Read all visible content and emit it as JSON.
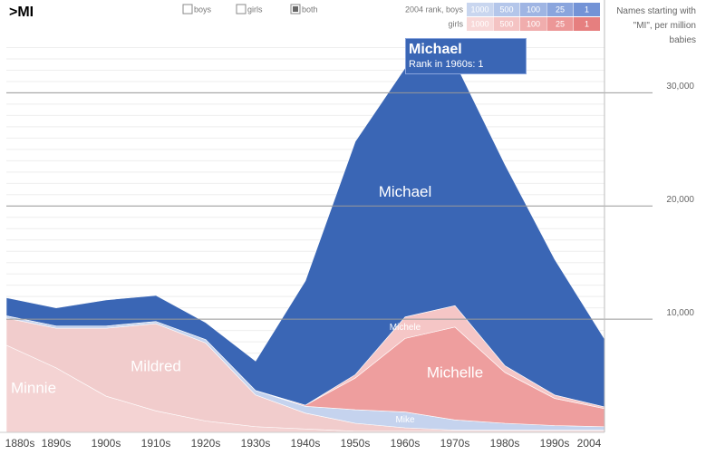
{
  "search": ">MI",
  "filters": [
    {
      "label": "boys",
      "checked": false
    },
    {
      "label": "girls",
      "checked": false
    },
    {
      "label": "both",
      "checked": true
    }
  ],
  "rank_legend": {
    "boys_label": "2004 rank, boys",
    "girls_label": "girls",
    "ranks": [
      1000,
      500,
      100,
      25,
      1
    ],
    "boys_colors": [
      "#c9d6ef",
      "#b4c6ea",
      "#9fb5e3",
      "#8aa5dd",
      "#7393d6"
    ],
    "girls_colors": [
      "#f8d8d8",
      "#f4c3c3",
      "#f0adad",
      "#ec9797",
      "#e67f7f"
    ]
  },
  "axis_note": "Names starting with \"MI\", per million babies",
  "tooltip": {
    "title": "Michael",
    "text": "Rank in 1960s: 1"
  },
  "chart_data": {
    "type": "stacked_area",
    "categories": [
      "1880s",
      "1890s",
      "1900s",
      "1910s",
      "1920s",
      "1930s",
      "1940s",
      "1950s",
      "1960s",
      "1970s",
      "1980s",
      "1990s",
      "2004"
    ],
    "series": [
      {
        "name": "Minnie",
        "color": "#f4d3d3",
        "values": [
          7700,
          5700,
          3200,
          1900,
          1000,
          500,
          300,
          100,
          100,
          100,
          100,
          100,
          100
        ]
      },
      {
        "name": "Mildred",
        "color": "#f1cccc",
        "values": [
          2400,
          3500,
          6000,
          7700,
          6900,
          2800,
          1400,
          700,
          300,
          100,
          100,
          100,
          100
        ]
      },
      {
        "name": "Mike",
        "color": "#c5d3ee",
        "values": [
          200,
          200,
          200,
          200,
          300,
          400,
          600,
          1200,
          1400,
          900,
          600,
          400,
          300
        ]
      },
      {
        "name": "Michelle",
        "color": "#ee9e9e",
        "values": [
          0,
          0,
          0,
          0,
          0,
          0,
          100,
          2800,
          6500,
          8200,
          4500,
          2400,
          1600
        ]
      },
      {
        "name": "Michele",
        "color": "#f5c6c6",
        "values": [
          0,
          0,
          0,
          0,
          0,
          0,
          0,
          300,
          1900,
          1900,
          600,
          300,
          150
        ]
      },
      {
        "name": "Michael",
        "color": "#3a66b5",
        "values": [
          1600,
          1600,
          2300,
          2300,
          1500,
          2600,
          11000,
          20600,
          22000,
          21500,
          17800,
          12000,
          6000
        ]
      }
    ],
    "ylim": [
      0,
      35000
    ],
    "yticks": [
      {
        "value": 10000,
        "label": "10,000"
      },
      {
        "value": 20000,
        "label": "20,000"
      },
      {
        "value": 30000,
        "label": "30,000"
      }
    ],
    "grid": true,
    "minor_grid_step": 1000
  }
}
